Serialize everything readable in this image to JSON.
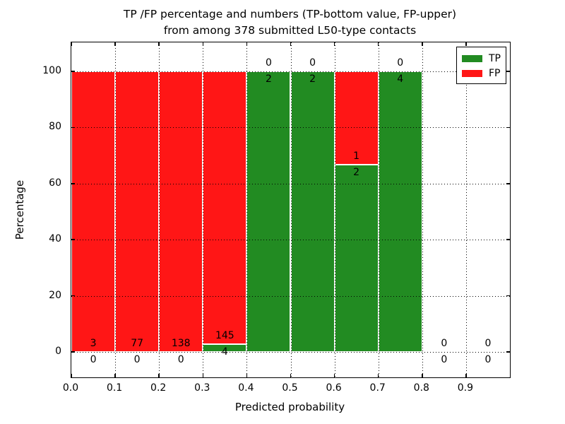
{
  "title": {
    "line1": "TP /FP percentage and numbers (TP-bottom value, FP-upper)",
    "line2": "from among 378 submitted L50-type contacts"
  },
  "axes": {
    "xlabel": "Predicted probability",
    "ylabel": "Percentage",
    "x_tick_labels": [
      "0.0",
      "0.1",
      "0.2",
      "0.3",
      "0.4",
      "0.5",
      "0.6",
      "0.7",
      "0.8",
      "0.9"
    ],
    "y_tick_labels": [
      "0",
      "20",
      "40",
      "60",
      "80",
      "100"
    ],
    "y_tick_values": [
      0,
      20,
      40,
      60,
      80,
      100
    ]
  },
  "legend": {
    "entries": [
      {
        "label": "TP",
        "color": "#228b22"
      },
      {
        "label": "FP",
        "color": "#ff1616"
      }
    ]
  },
  "colors": {
    "tp": "#228b22",
    "fp": "#ff1616",
    "bar_edge": "#ffffff",
    "grid": "#000000"
  },
  "chart_data": {
    "type": "bar",
    "stacked": true,
    "title": "TP /FP percentage and numbers (TP-bottom value, FP-upper) from among 378 submitted L50-type contacts",
    "xlabel": "Predicted probability",
    "ylabel": "Percentage",
    "xlim": [
      0.0,
      1.0
    ],
    "ylim": [
      -9,
      110
    ],
    "grid": true,
    "legend_position": "upper right",
    "total_contacts": 378,
    "bin_width": 0.1,
    "bins": [
      {
        "x_start": 0.0,
        "x_end": 0.1,
        "tp": 0,
        "fp": 3,
        "tp_pct": 0.0,
        "fp_pct": 100.0
      },
      {
        "x_start": 0.1,
        "x_end": 0.2,
        "tp": 0,
        "fp": 77,
        "tp_pct": 0.0,
        "fp_pct": 100.0
      },
      {
        "x_start": 0.2,
        "x_end": 0.3,
        "tp": 0,
        "fp": 138,
        "tp_pct": 0.0,
        "fp_pct": 100.0
      },
      {
        "x_start": 0.3,
        "x_end": 0.4,
        "tp": 4,
        "fp": 145,
        "tp_pct": 2.68,
        "fp_pct": 97.32
      },
      {
        "x_start": 0.4,
        "x_end": 0.5,
        "tp": 2,
        "fp": 0,
        "tp_pct": 100.0,
        "fp_pct": 0.0
      },
      {
        "x_start": 0.5,
        "x_end": 0.6,
        "tp": 2,
        "fp": 0,
        "tp_pct": 100.0,
        "fp_pct": 0.0
      },
      {
        "x_start": 0.6,
        "x_end": 0.7,
        "tp": 2,
        "fp": 1,
        "tp_pct": 66.67,
        "fp_pct": 33.33
      },
      {
        "x_start": 0.7,
        "x_end": 0.8,
        "tp": 4,
        "fp": 0,
        "tp_pct": 100.0,
        "fp_pct": 0.0
      },
      {
        "x_start": 0.8,
        "x_end": 0.9,
        "tp": 0,
        "fp": 0,
        "tp_pct": 0.0,
        "fp_pct": 0.0
      },
      {
        "x_start": 0.9,
        "x_end": 1.0,
        "tp": 0,
        "fp": 0,
        "tp_pct": 0.0,
        "fp_pct": 0.0
      }
    ],
    "series": [
      {
        "name": "TP",
        "color": "#228b22",
        "values": [
          0,
          0,
          0,
          4,
          2,
          2,
          2,
          4,
          0,
          0
        ]
      },
      {
        "name": "FP",
        "color": "#ff1616",
        "values": [
          3,
          77,
          138,
          145,
          0,
          0,
          1,
          0,
          0,
          0
        ]
      }
    ]
  }
}
